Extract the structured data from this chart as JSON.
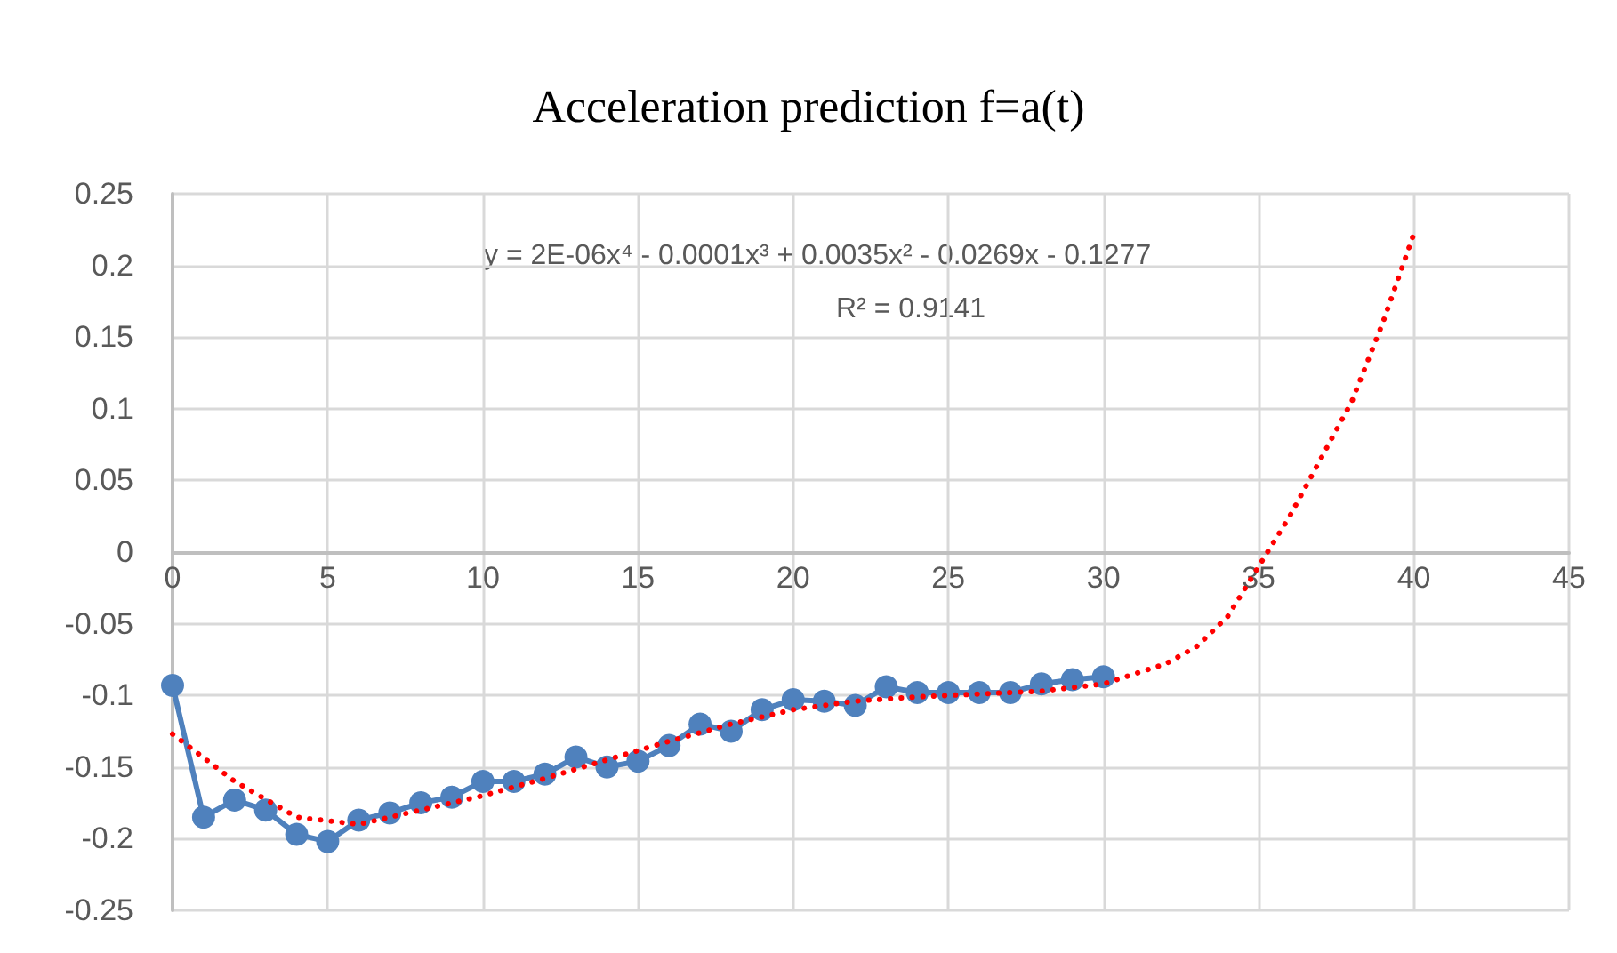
{
  "chart_data": {
    "type": "line",
    "title": "Acceleration prediction f=a(t)",
    "annotations": [
      "y = 2E-06x⁴ - 0.0001x³ + 0.0035x² - 0.0269x - 0.1277",
      "R² = 0.9141"
    ],
    "series": [
      {
        "color": "#4f81bd",
        "marker": "circle",
        "line_style": "solid",
        "x": [
          0,
          1,
          2,
          3,
          4,
          5,
          6,
          7,
          8,
          9,
          10,
          11,
          12,
          13,
          14,
          15,
          16,
          17,
          18,
          19,
          20,
          21,
          22,
          23,
          24,
          25,
          26,
          27,
          28,
          29,
          30
        ],
        "values": [
          -0.093,
          -0.185,
          -0.173,
          -0.18,
          -0.197,
          -0.202,
          -0.187,
          -0.182,
          -0.175,
          -0.171,
          -0.16,
          -0.16,
          -0.155,
          -0.143,
          -0.15,
          -0.146,
          -0.135,
          -0.12,
          -0.125,
          -0.11,
          -0.103,
          -0.104,
          -0.107,
          -0.094,
          -0.098,
          -0.098,
          -0.098,
          -0.098,
          -0.092,
          -0.089,
          -0.087
        ]
      },
      {
        "color": "#ff0000",
        "marker": "none",
        "line_style": "dotted",
        "x": [
          0,
          2,
          4,
          6,
          8,
          10,
          12,
          14,
          16,
          18,
          20,
          22,
          24,
          26,
          28,
          30,
          32,
          33,
          34,
          35,
          36,
          37,
          38,
          39,
          40
        ],
        "values": [
          -0.127,
          -0.16,
          -0.185,
          -0.19,
          -0.18,
          -0.17,
          -0.158,
          -0.145,
          -0.132,
          -0.12,
          -0.11,
          -0.104,
          -0.101,
          -0.099,
          -0.097,
          -0.092,
          -0.078,
          -0.066,
          -0.045,
          -0.01,
          0.025,
          0.065,
          0.105,
          0.16,
          0.222
        ]
      }
    ],
    "xlim": [
      0,
      45
    ],
    "xticks": [
      0,
      5,
      10,
      15,
      20,
      25,
      30,
      35,
      40,
      45
    ],
    "ylim": [
      -0.25,
      0.25
    ],
    "yticks": [
      -0.25,
      -0.2,
      -0.15,
      -0.1,
      -0.05,
      0,
      0.05,
      0.1,
      0.15,
      0.2,
      0.25
    ],
    "grid": true
  }
}
